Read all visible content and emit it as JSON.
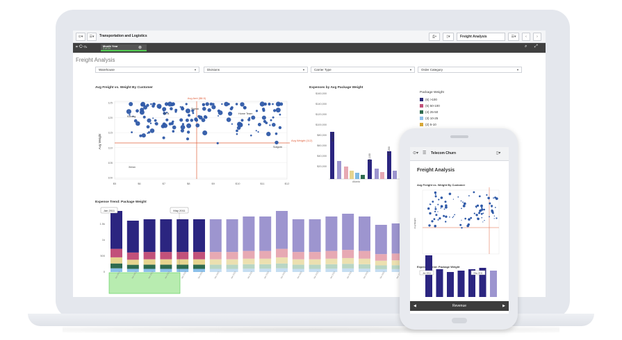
{
  "app": {
    "title": "Transportation and Logistics",
    "sheet_selector": "Freight Analysis"
  },
  "selections": {
    "field": "Month Year",
    "count": "3 of 24"
  },
  "sheet": {
    "title": "Freight Analysis"
  },
  "filters": [
    "Warehouse",
    "Divisions",
    "Carrier Type",
    "Order Category"
  ],
  "scatter": {
    "title": "Avg Freight vs. Weight By Customer",
    "ylabel": "Avg Weight",
    "xticks": [
      "$5",
      "$6",
      "$7",
      "$8",
      "$9",
      "$10",
      "$11",
      "$12"
    ],
    "yticks": [
      "125",
      "120",
      "115",
      "110",
      "105",
      "100"
    ],
    "ref_x_label": "Avg Amt ($8.5)",
    "ref_y_label": "Avg Weight (112)",
    "point_labels": [
      "Karong",
      "Fill B",
      "Sigma",
      "Home Team",
      "Solgom",
      "Xerox"
    ]
  },
  "expenses": {
    "title": "Expenses by Avg Package Weight",
    "yticks": [
      "$160,000",
      "$140,000",
      "$120,000",
      "$100,000",
      "$80,000",
      "$60,000",
      "$40,000",
      "$20,000"
    ],
    "bar_labels": [
      "$81,186",
      "$71,100",
      "$71,200"
    ],
    "x_labels": [
      "Atlanta"
    ]
  },
  "legend": {
    "title": "Package Weight",
    "items": [
      "(6) >100",
      "(5) 50-100",
      "(4) 25-50",
      "(3) 10-25",
      "(2) 5-10",
      "(1) 0-5"
    ],
    "colors": [
      "#2a2a7a",
      "#c2517a",
      "#2f6b4f",
      "#8cc0ea",
      "#d8a838",
      "#c54a5e"
    ]
  },
  "trend": {
    "title": "Expense Trend: Package Weight",
    "callouts": [
      "Jan 2011",
      "May 2011"
    ],
    "yticks": [
      "1.5k",
      "1k",
      "500",
      "0"
    ]
  },
  "phone": {
    "app_title": "Telecom Churn",
    "sheet_title": "Freight Analysis",
    "scatter_title": "Avg Freight vs. Weight By Customer",
    "scatter_ylabel": "Avg Weight",
    "trend_title": "Expense Trend: Package Weight",
    "callouts": [
      "Jan 2011",
      "May 2011"
    ],
    "bottom_label": "Revenue"
  },
  "colors": {
    "navy": "#2b2580",
    "lavender": "#9d95cf",
    "pink": "#e7a9b3",
    "yellow": "#e6d48f",
    "green_sel": "#52cc52",
    "ref_line": "#e0603c",
    "scatter_point": "#2f5aa8"
  }
}
